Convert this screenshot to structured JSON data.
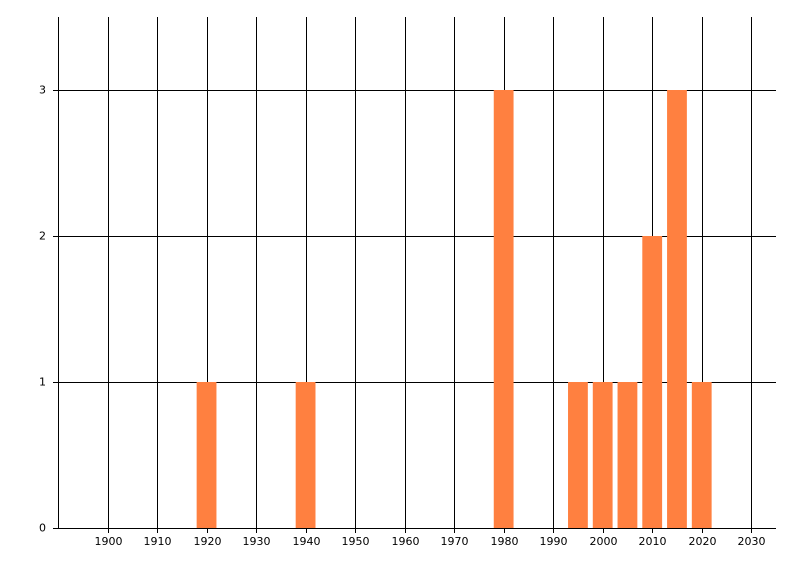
{
  "chart_data": {
    "type": "bar",
    "x": [
      1920,
      1940,
      1980,
      1995,
      2000,
      2005,
      2010,
      2015,
      2020
    ],
    "values": [
      1,
      1,
      3,
      1,
      1,
      1,
      2,
      3,
      1
    ],
    "color": "#ff8040",
    "xlim": [
      1890,
      2035
    ],
    "xticks": [
      1900,
      1910,
      1920,
      1930,
      1940,
      1950,
      1960,
      1970,
      1980,
      1990,
      2000,
      2010,
      2020,
      2030
    ],
    "ylim": [
      0,
      3.5
    ],
    "yticks": [
      0,
      1,
      2,
      3
    ],
    "grid": true
  }
}
